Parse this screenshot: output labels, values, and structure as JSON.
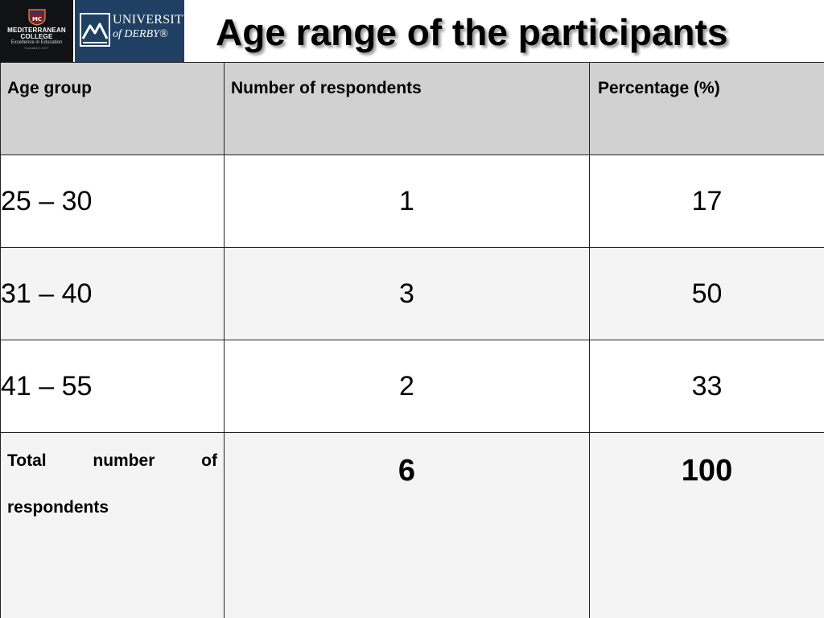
{
  "header": {
    "title": "Age range of the participants",
    "logo_left": {
      "name_line1": "MEDITERRANEAN",
      "name_line2": "COLLEGE",
      "tagline": "Excellence in Education",
      "founded": "Founded in 1977",
      "crest_text": "MC"
    },
    "logo_right": {
      "line1": "UNIVERSITY",
      "line2": "of DERBY®"
    }
  },
  "table": {
    "columns": [
      "Age group",
      "Number of respondents",
      "Percentage (%)"
    ],
    "rows": [
      {
        "age_group": "25 – 30",
        "respondents": "1",
        "percentage": "17"
      },
      {
        "age_group": "31 – 40",
        "respondents": "3",
        "percentage": "50"
      },
      {
        "age_group": "41 – 55",
        "respondents": "2",
        "percentage": "33"
      }
    ],
    "total": {
      "label": "Total number of respondents",
      "respondents": "6",
      "percentage": "100"
    }
  },
  "colors": {
    "header_fill": "#d1d1d1",
    "alt_row_fill": "#f4f4f4",
    "logo_left_bg": "#111214",
    "logo_right_bg": "#1f3f63"
  }
}
